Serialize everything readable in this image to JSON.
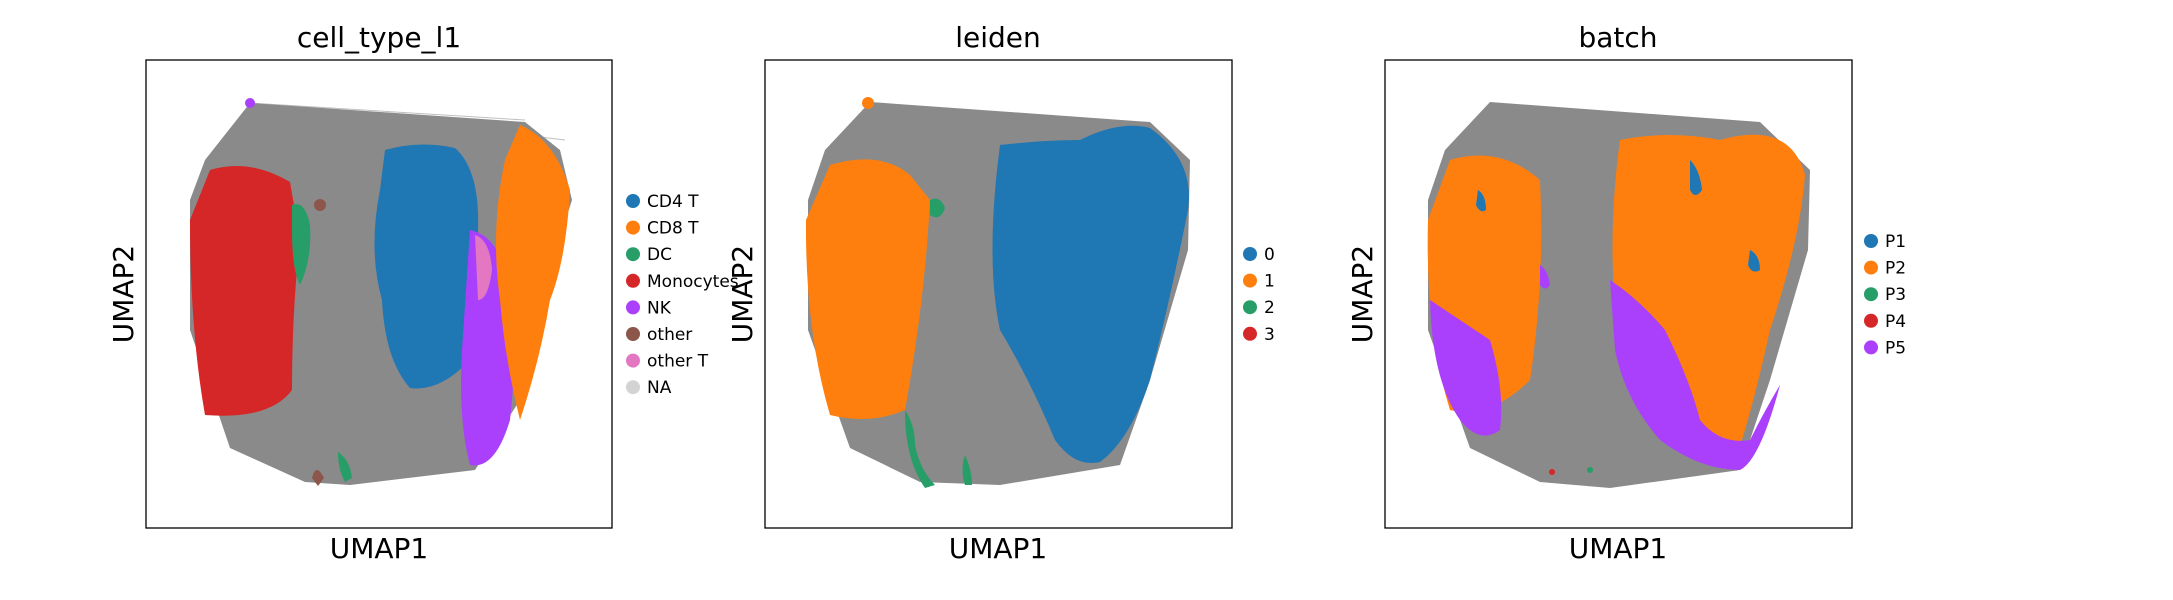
{
  "chart_data": [
    {
      "type": "scatter",
      "title": "cell_type_l1",
      "xlabel": "UMAP1",
      "ylabel": "UMAP2",
      "grid": false,
      "legend_position": "right",
      "edges_color": "#808080",
      "series": [
        {
          "name": "CD4 T",
          "color": "#1f77b4"
        },
        {
          "name": "CD8 T",
          "color": "#ff7f0e"
        },
        {
          "name": "DC",
          "color": "#279e68"
        },
        {
          "name": "Monocytes",
          "color": "#d62728"
        },
        {
          "name": "NK",
          "color": "#aa40fc"
        },
        {
          "name": "other",
          "color": "#8c564b"
        },
        {
          "name": "other T",
          "color": "#e377c2"
        },
        {
          "name": "NA",
          "color": "#d3d3d3"
        }
      ]
    },
    {
      "type": "scatter",
      "title": "leiden",
      "xlabel": "UMAP1",
      "ylabel": "UMAP2",
      "grid": false,
      "legend_position": "right",
      "edges_color": "#808080",
      "series": [
        {
          "name": "0",
          "color": "#1f77b4"
        },
        {
          "name": "1",
          "color": "#ff7f0e"
        },
        {
          "name": "2",
          "color": "#279e68"
        },
        {
          "name": "3",
          "color": "#d62728"
        }
      ]
    },
    {
      "type": "scatter",
      "title": "batch",
      "xlabel": "UMAP1",
      "ylabel": "UMAP2",
      "grid": false,
      "legend_position": "right",
      "edges_color": "#808080",
      "series": [
        {
          "name": "P1",
          "color": "#1f77b4"
        },
        {
          "name": "P2",
          "color": "#ff7f0e"
        },
        {
          "name": "P3",
          "color": "#279e68"
        },
        {
          "name": "P4",
          "color": "#d62728"
        },
        {
          "name": "P5",
          "color": "#aa40fc"
        }
      ]
    }
  ]
}
